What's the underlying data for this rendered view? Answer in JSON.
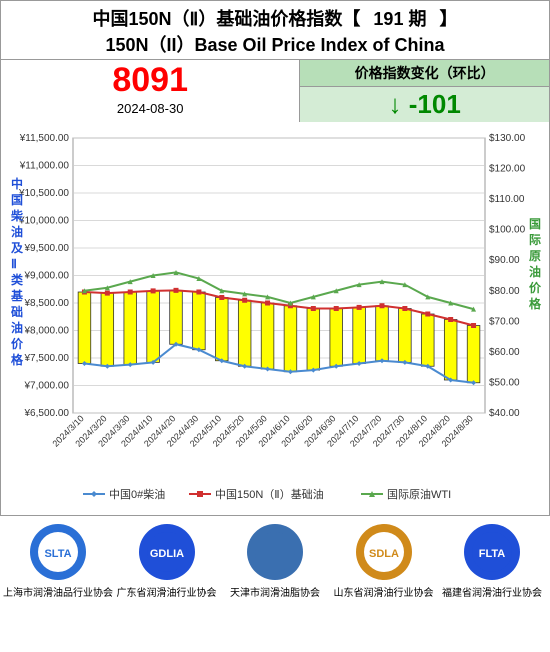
{
  "title_cn_prefix": "中国150N（Ⅱ）基础油价格指数【",
  "title_cn_issue": "191 期",
  "title_cn_suffix": "】",
  "title_en": "150N（II）Base Oil Price Index of China",
  "index_value": "8091",
  "index_date": "2024-08-30",
  "change_label": "价格指数变化（环比）",
  "change_value": "↓ -101",
  "chart": {
    "type": "combo-bar-line-dual-axis",
    "background_color": "#ffffff",
    "grid_color": "#cccccc",
    "left_axis_label_vertical": "中国柴油及Ⅱ类基础油价格",
    "left_axis_label_color": "#1f4fd8",
    "right_axis_label_vertical": "国际原油价格",
    "right_axis_label_color": "#3a9a3a",
    "left_axis": {
      "min": 6500,
      "max": 11500,
      "step": 500,
      "prefix": "¥",
      "format": "0.00",
      "fontsize": 10,
      "color": "#333333"
    },
    "right_axis": {
      "min": 40,
      "max": 130,
      "step": 10,
      "prefix": "$",
      "format": "0.00",
      "fontsize": 10,
      "color": "#333333"
    },
    "x_labels": [
      "2024/3/10",
      "2024/3/20",
      "2024/3/30",
      "2024/4/10",
      "2024/4/20",
      "2024/4/30",
      "2024/5/10",
      "2024/5/20",
      "2024/5/30",
      "2024/6/10",
      "2024/6/20",
      "2024/6/30",
      "2024/7/10",
      "2024/7/20",
      "2024/7/30",
      "2024/8/10",
      "2024/8/20",
      "2024/8/30"
    ],
    "x_label_fontsize": 9,
    "x_label_rotation": -45,
    "series": [
      {
        "name": "中国0#柴油",
        "type": "line",
        "axis": "left",
        "color": "#4a8ad0",
        "marker": "diamond",
        "marker_size": 5,
        "line_width": 2,
        "values": [
          7400,
          7350,
          7380,
          7420,
          7750,
          7650,
          7450,
          7350,
          7300,
          7250,
          7280,
          7350,
          7400,
          7450,
          7420,
          7350,
          7100,
          7050
        ]
      },
      {
        "name": "中国150N（Ⅱ）基础油",
        "type": "line",
        "axis": "left",
        "color": "#d03030",
        "marker": "square",
        "marker_size": 5,
        "line_width": 2,
        "values": [
          8700,
          8680,
          8700,
          8720,
          8730,
          8700,
          8600,
          8550,
          8500,
          8450,
          8400,
          8400,
          8420,
          8450,
          8400,
          8300,
          8200,
          8091
        ]
      },
      {
        "name": "国际原油WTI",
        "type": "line",
        "axis": "right",
        "color": "#5aa84e",
        "marker": "triangle",
        "marker_size": 5,
        "line_width": 2,
        "values": [
          80,
          81,
          83,
          85,
          86,
          84,
          80,
          79,
          78,
          76,
          78,
          80,
          82,
          83,
          82,
          78,
          76,
          74
        ]
      },
      {
        "name": "bars",
        "type": "bar",
        "axis": "left",
        "fill_color": "#ffff00",
        "border_color": "#333333",
        "bar_width": 0.55,
        "low": [
          7400,
          7350,
          7380,
          7420,
          7750,
          7650,
          7450,
          7350,
          7300,
          7250,
          7280,
          7350,
          7400,
          7450,
          7420,
          7350,
          7100,
          7050
        ],
        "high": [
          8700,
          8680,
          8700,
          8720,
          8730,
          8700,
          8600,
          8550,
          8500,
          8450,
          8400,
          8400,
          8420,
          8450,
          8400,
          8300,
          8200,
          8091
        ]
      }
    ],
    "legend": {
      "position": "bottom",
      "fontsize": 11,
      "items": [
        {
          "label": "中国0#柴油",
          "color": "#4a8ad0",
          "marker": "diamond"
        },
        {
          "label": "中国150N（Ⅱ）基础油",
          "color": "#d03030",
          "marker": "square"
        },
        {
          "label": "国际原油WTI",
          "color": "#5aa84e",
          "marker": "triangle"
        }
      ]
    }
  },
  "logos": [
    {
      "acronym": "SLTA",
      "caption": "上海市润滑油品行业协会",
      "ring_color": "#2a6fd6",
      "inner_color": "#ffffff"
    },
    {
      "acronym": "GDLIA",
      "caption": "广东省润滑油行业协会",
      "ring_color": "#1f4fd8",
      "inner_color": "#1f4fd8"
    },
    {
      "acronym": "",
      "caption": "天津市润滑油脂协会",
      "ring_color": "#3a6fb0",
      "inner_color": "#3a6fb0"
    },
    {
      "acronym": "SDLA",
      "caption": "山东省润滑油行业协会",
      "ring_color": "#d08a1a",
      "inner_color": "#ffffff"
    },
    {
      "acronym": "FLTA",
      "caption": "福建省润滑油行业协会",
      "ring_color": "#1f4fd8",
      "inner_color": "#1f4fd8"
    }
  ]
}
